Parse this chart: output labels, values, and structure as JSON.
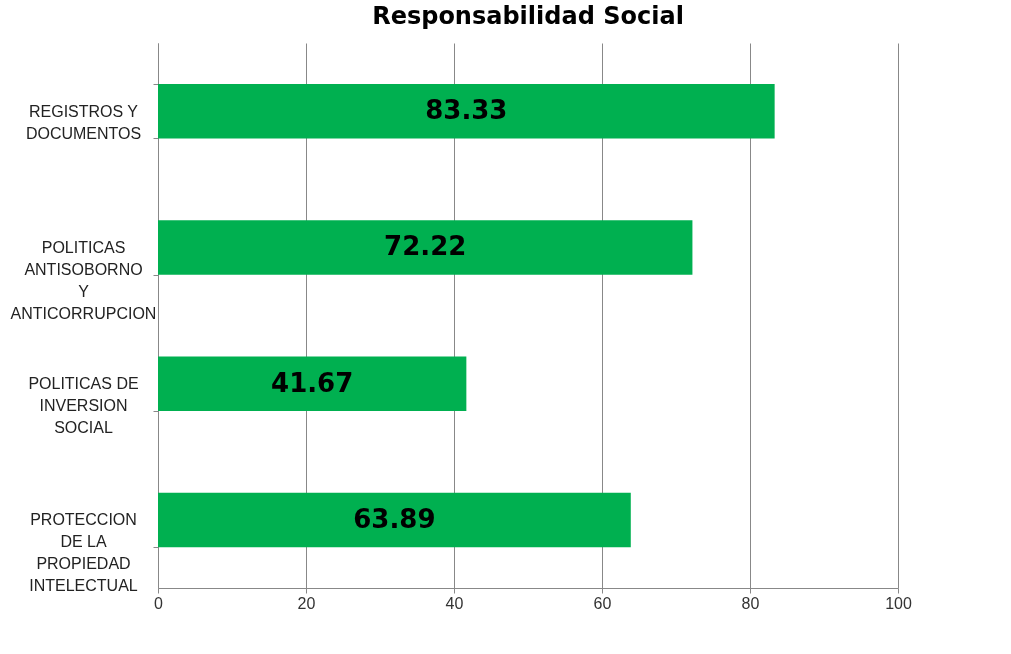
{
  "chart_data": {
    "type": "bar",
    "orientation": "horizontal",
    "title": "Responsabilidad Social",
    "categories": [
      "REGISTROS Y DOCUMENTOS",
      "POLITICAS ANTISOBORNO Y ANTICORRUPCION",
      "POLITICAS DE INVERSION SOCIAL",
      "PROTECCION DE LA PROPIEDAD INTELECTUAL"
    ],
    "values": [
      83.33,
      72.22,
      41.67,
      63.89
    ],
    "color": "#00b050",
    "xlim": [
      0,
      100
    ],
    "xticks": [
      0,
      20,
      40,
      60,
      80,
      100
    ],
    "grid": "x",
    "data_labels": true
  }
}
